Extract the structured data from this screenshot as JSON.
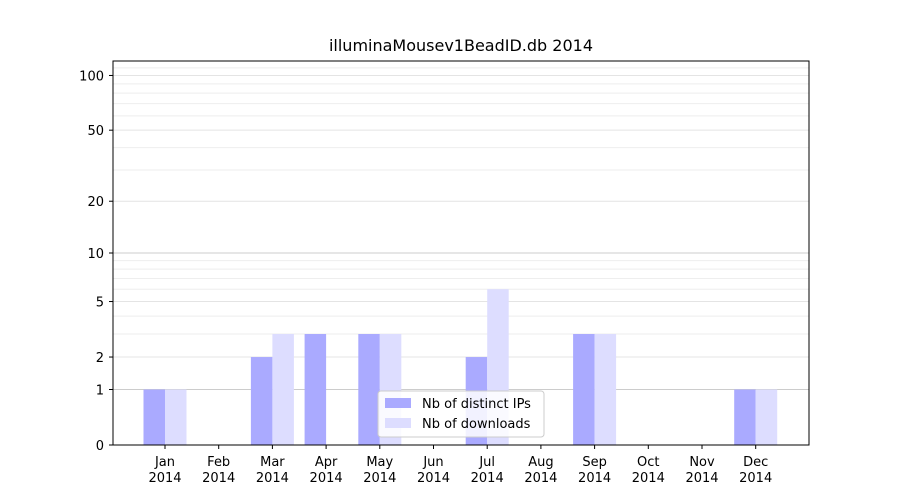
{
  "chart_data": {
    "type": "bar",
    "title": "illuminaMousev1BeadID.db 2014",
    "xlabel": "",
    "ylabel": "",
    "yscale": "log1p",
    "ylim": [
      0,
      120
    ],
    "yticks": [
      0,
      1,
      2,
      5,
      10,
      20,
      50,
      100
    ],
    "categories": [
      "Jan\n2014",
      "Feb\n2014",
      "Mar\n2014",
      "Apr\n2014",
      "May\n2014",
      "Jun\n2014",
      "Jul\n2014",
      "Aug\n2014",
      "Sep\n2014",
      "Oct\n2014",
      "Nov\n2014",
      "Dec\n2014"
    ],
    "series": [
      {
        "name": "Nb of distinct IPs",
        "color": "#aaaaff",
        "values": [
          1,
          0,
          2,
          3,
          3,
          0,
          2,
          0,
          3,
          0,
          0,
          1
        ]
      },
      {
        "name": "Nb of downloads",
        "color": "#ddddff",
        "values": [
          1,
          0,
          3,
          0,
          3,
          0,
          6,
          0,
          3,
          0,
          0,
          1
        ]
      }
    ],
    "grid": true,
    "legend_position": "lower center"
  }
}
